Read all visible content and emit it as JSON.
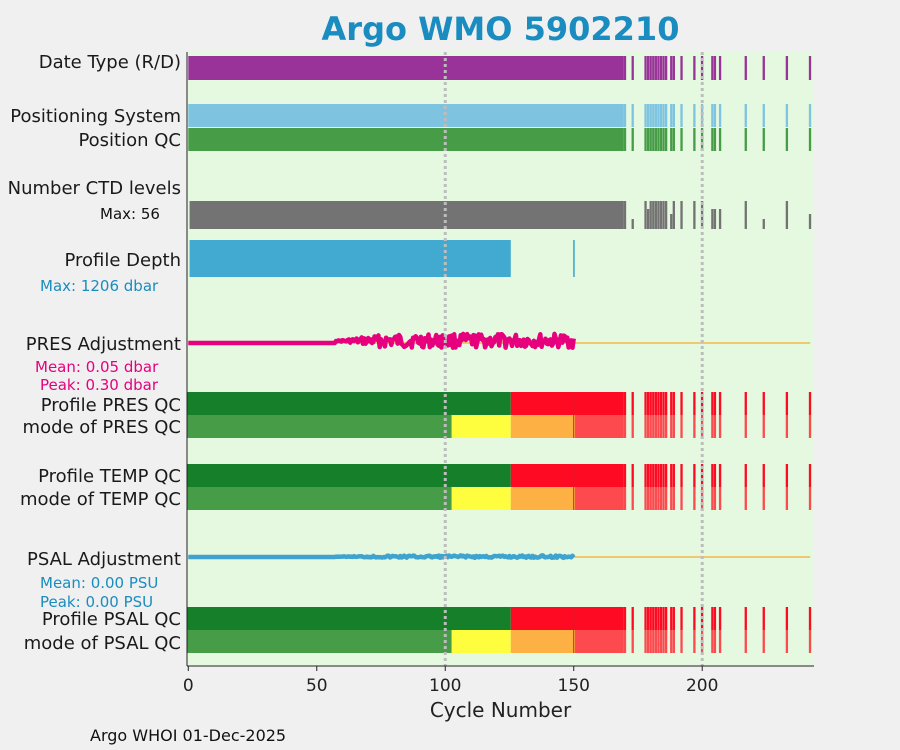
{
  "chart_data": {
    "type": "bar",
    "title": "Argo WMO 5902210",
    "xlabel": "Cycle Number",
    "xlim": [
      -0.5,
      243.5
    ],
    "xticks": [
      0,
      50,
      100,
      150,
      200
    ],
    "grid_x": [
      100,
      200
    ],
    "rows": {
      "data_type": {
        "label": "Date Type (R/D)",
        "color": "#993399"
      },
      "pos_system": {
        "label": "Positioning System",
        "color": "#7ec4e0"
      },
      "pos_qc": {
        "label": "Position QC",
        "color": "#479c47"
      },
      "ctd_levels": {
        "label": "Number CTD levels",
        "max_label": "Max: 56",
        "max": 56,
        "color": "#737373"
      },
      "profile_depth": {
        "label": "Profile Depth",
        "max_label": "Max: 1206 dbar",
        "max": 1206,
        "color": "#42aad0"
      },
      "pres_adj": {
        "label": "PRES Adjustment",
        "mean_label": "Mean: 0.05 dbar",
        "peak_label": "Peak: 0.30 dbar",
        "color": "#e6007e"
      },
      "profile_pres_qc": {
        "label": "Profile PRES QC"
      },
      "mode_pres_qc": {
        "label": "mode of PRES QC"
      },
      "profile_temp_qc": {
        "label": "Profile TEMP QC"
      },
      "mode_temp_qc": {
        "label": "mode of TEMP QC"
      },
      "psal_adj": {
        "label": "PSAL Adjustment",
        "mean_label": "Mean: 0.00 PSU",
        "peak_label": "Peak: 0.00 PSU",
        "color": "#3ea4cf"
      },
      "profile_psal_qc": {
        "label": "Profile PSAL QC"
      },
      "mode_psal_qc": {
        "label": "mode of PSAL QC"
      }
    },
    "cycles_continuous_end": 169,
    "sparse_cycles": [
      170,
      173,
      178,
      179,
      180,
      181,
      182,
      183,
      184,
      185,
      186,
      188,
      189,
      192,
      197,
      200,
      204,
      205,
      207,
      217,
      224,
      233,
      242
    ],
    "ctd_sparse_levels": [
      56,
      20,
      56,
      40,
      56,
      56,
      56,
      56,
      56,
      56,
      56,
      30,
      56,
      56,
      56,
      56,
      40,
      40,
      40,
      56,
      20,
      56,
      30
    ],
    "profile_depth_segments": [
      {
        "from": 0,
        "to": 125,
        "value": 1206
      },
      {
        "cycle": 150,
        "value": 1206
      }
    ],
    "profile_qc_segments": [
      {
        "from": 0,
        "to": 125,
        "color": "#157f2a"
      },
      {
        "from": 126,
        "to": 169,
        "color": "#fe0a22"
      }
    ],
    "mode_qc_segments": [
      {
        "from": 0,
        "to": 102,
        "color": "#479c47"
      },
      {
        "from": 103,
        "to": 125,
        "color": "#fefe3e"
      },
      {
        "from": 126,
        "to": 150,
        "color": "#fdb144"
      },
      {
        "from": 151,
        "to": 169,
        "color": "#fd4a4f"
      }
    ],
    "profile_qc_sparse_color": "#fe0a22",
    "mode_qc_sparse_color": "#fd4a4f",
    "adjustment_extent": 150,
    "baseline_color": "#f3b84e"
  },
  "footer": "Argo WHOI 01-Dec-2025"
}
